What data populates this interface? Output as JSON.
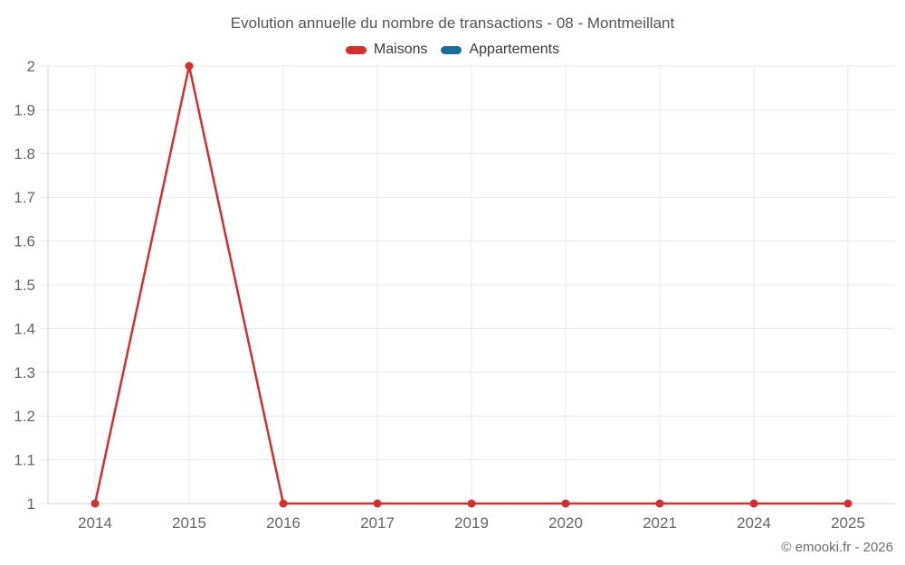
{
  "page": {
    "copyright": "© emooki.fr - 2026"
  },
  "chart_data": {
    "type": "line",
    "title": "Evolution annuelle du nombre de transactions - 08 - Montmeillant",
    "categories": [
      "2014",
      "2015",
      "2016",
      "2017",
      "2019",
      "2020",
      "2021",
      "2024",
      "2025"
    ],
    "series": [
      {
        "name": "Maisons",
        "color": "#d32f2f",
        "values": [
          1,
          2,
          1,
          1,
          1,
          1,
          1,
          1,
          1
        ]
      },
      {
        "name": "Appartements",
        "color": "#1a6d9b",
        "values": []
      }
    ],
    "xlabel": "",
    "ylabel": "",
    "ylim": [
      1,
      2
    ],
    "ytick_step": 0.1,
    "grid": true,
    "legend_position": "top"
  },
  "colors": {
    "gridline": "#e9e9e9",
    "axis_line": "#d6d6d6",
    "tick_label": "#666666"
  }
}
